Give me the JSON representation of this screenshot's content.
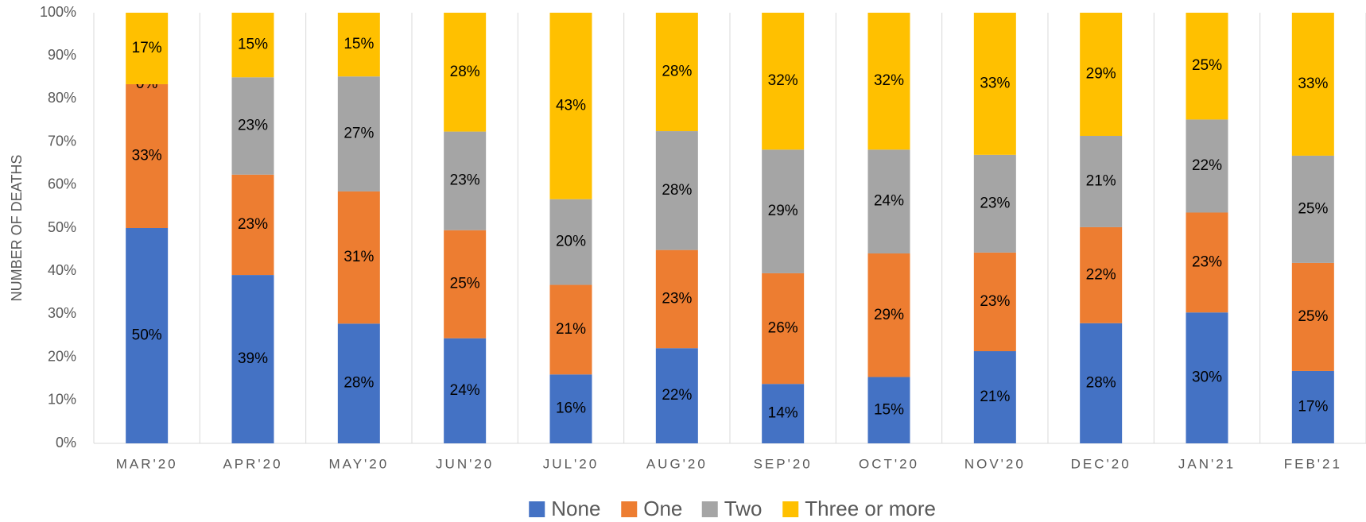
{
  "chart_data": {
    "type": "stacked_bar_percent",
    "y_axis_label": "NUMBER OF DEATHS",
    "categories": [
      "MAR'20",
      "APR'20",
      "MAY'20",
      "JUN'20",
      "JUL'20",
      "AUG'20",
      "SEP'20",
      "OCT'20",
      "NOV'20",
      "DEC'20",
      "JAN'21",
      "FEB'21"
    ],
    "series": [
      {
        "name": "None",
        "color": "#4472c4",
        "values": [
          50.0,
          39.1,
          27.8,
          24.4,
          16.0,
          22.1,
          13.8,
          15.4,
          21.4,
          27.9,
          30.4,
          16.8
        ],
        "value_labels": [
          "50%",
          "39%",
          "28%",
          "24%",
          "16%",
          "22%",
          "14%",
          "15%",
          "21%",
          "28%",
          "30%",
          "17%"
        ]
      },
      {
        "name": "One",
        "color": "#ed7d31",
        "values": [
          33.4,
          23.3,
          30.7,
          25.1,
          20.8,
          22.8,
          25.7,
          28.7,
          22.9,
          22.3,
          23.2,
          25.1
        ],
        "value_labels": [
          "33%",
          "23%",
          "31%",
          "25%",
          "21%",
          "23%",
          "26%",
          "29%",
          "23%",
          "22%",
          "23%",
          "25%"
        ]
      },
      {
        "name": "Two",
        "color": "#a5a5a5",
        "values": [
          0,
          22.6,
          26.7,
          22.9,
          19.9,
          27.6,
          28.7,
          24.1,
          22.7,
          21.2,
          21.6,
          24.9
        ],
        "value_labels": [
          "0%",
          "23%",
          "27%",
          "23%",
          "20%",
          "28%",
          "29%",
          "24%",
          "23%",
          "21%",
          "22%",
          "25%"
        ]
      },
      {
        "name": "Three or more",
        "color": "#ffc000",
        "values": [
          16.6,
          15.0,
          14.8,
          27.6,
          43.3,
          27.5,
          31.8,
          31.8,
          33.0,
          28.6,
          24.8,
          33.2
        ],
        "value_labels": [
          "17%",
          "15%",
          "15%",
          "28%",
          "43%",
          "28%",
          "32%",
          "32%",
          "33%",
          "29%",
          "25%",
          "33%"
        ]
      }
    ],
    "ylim": [
      0,
      100
    ],
    "yticks": [
      {
        "value": 0,
        "label": "0%"
      },
      {
        "value": 10,
        "label": "10%"
      },
      {
        "value": 20,
        "label": "20%"
      },
      {
        "value": 30,
        "label": "30%"
      },
      {
        "value": 40,
        "label": "40%"
      },
      {
        "value": 50,
        "label": "50%"
      },
      {
        "value": 60,
        "label": "60%"
      },
      {
        "value": 70,
        "label": "70%"
      },
      {
        "value": 80,
        "label": "80%"
      },
      {
        "value": 90,
        "label": "90%"
      },
      {
        "value": 100,
        "label": "100%"
      }
    ],
    "legend": "bottom"
  }
}
